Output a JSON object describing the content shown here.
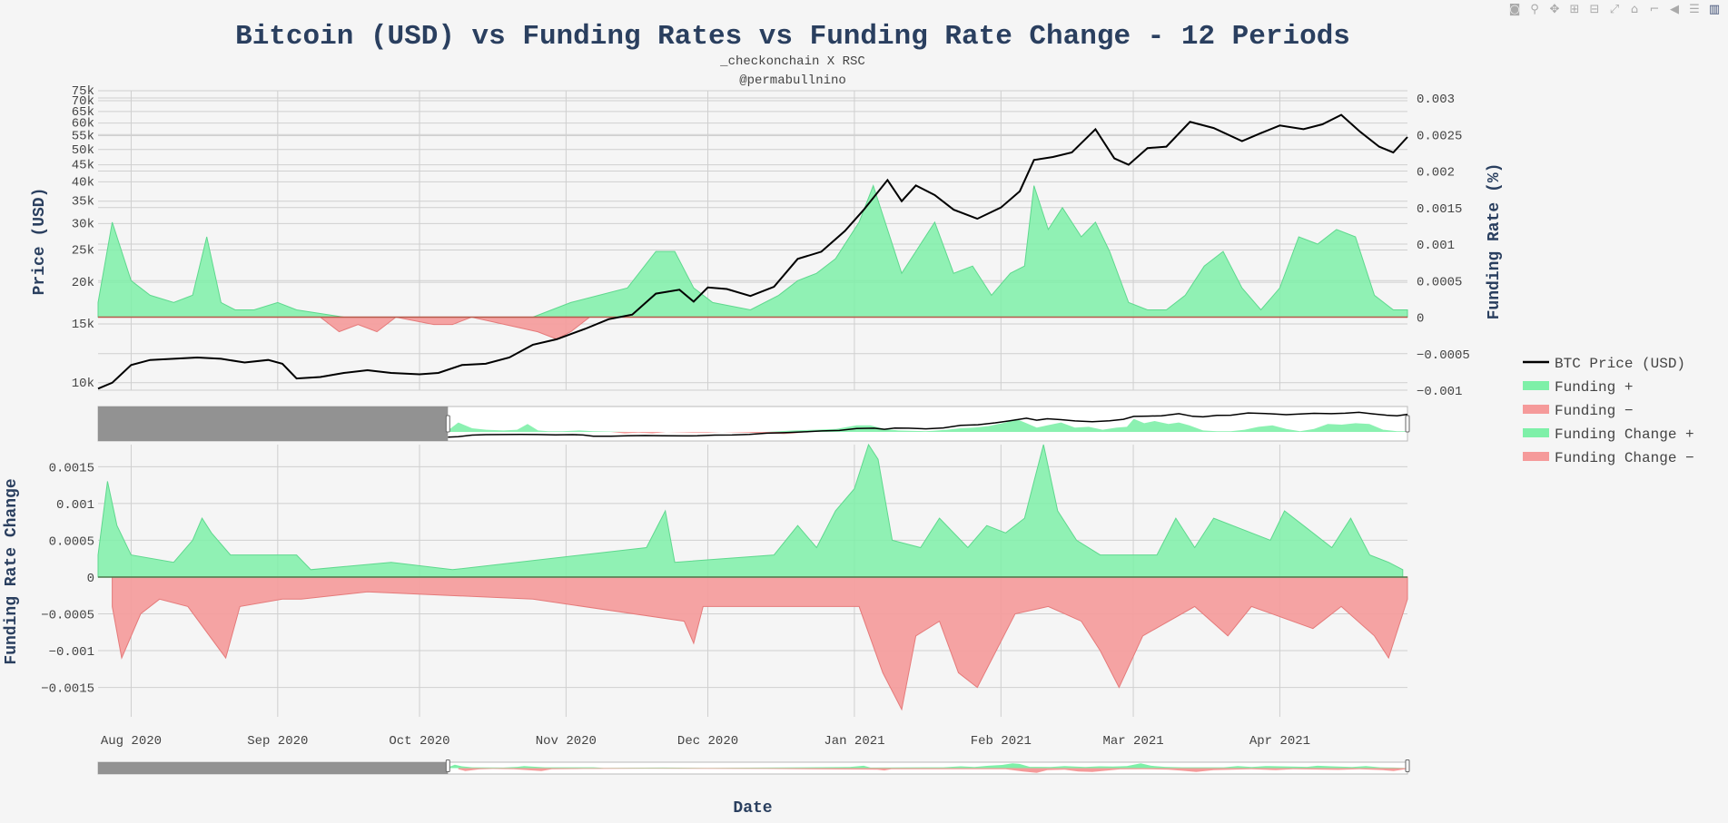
{
  "modebar": [
    {
      "name": "camera-icon",
      "glyph": "◙"
    },
    {
      "name": "zoom-icon",
      "glyph": "⚲"
    },
    {
      "name": "pan-icon",
      "glyph": "✥"
    },
    {
      "name": "zoom-in-icon",
      "glyph": "⊞"
    },
    {
      "name": "zoom-out-icon",
      "glyph": "⊟"
    },
    {
      "name": "autoscale-icon",
      "glyph": "⤢"
    },
    {
      "name": "home-icon",
      "glyph": "⌂"
    },
    {
      "name": "spike-lines-icon",
      "glyph": "⌐"
    },
    {
      "name": "hover-closest-icon",
      "glyph": "◀"
    },
    {
      "name": "hover-compare-icon",
      "glyph": "☰"
    },
    {
      "name": "plotly-logo-icon",
      "glyph": "▥"
    }
  ],
  "chart_data": {
    "type": "line",
    "title": "Bitcoin (USD) vs Funding Rates vs Funding Rate Change - 12 Periods",
    "subtitle_lines": [
      "_checkonchain X RSC",
      "@permabullnino"
    ],
    "xlabel": "Date",
    "x_range": [
      "2020-07-25",
      "2021-04-28"
    ],
    "x_ticks": [
      {
        "date": "2020-08-01",
        "label": "Aug 2020"
      },
      {
        "date": "2020-09-01",
        "label": "Sep 2020"
      },
      {
        "date": "2020-10-01",
        "label": "Oct 2020"
      },
      {
        "date": "2020-11-01",
        "label": "Nov 2020"
      },
      {
        "date": "2020-12-01",
        "label": "Dec 2020"
      },
      {
        "date": "2021-01-01",
        "label": "Jan 2021"
      },
      {
        "date": "2021-02-01",
        "label": "Feb 2021"
      },
      {
        "date": "2021-03-01",
        "label": "Mar 2021"
      },
      {
        "date": "2021-04-01",
        "label": "Apr 2021"
      }
    ],
    "top_panel": {
      "ylabel_left": "Price (USD)",
      "ylabel_right": "Funding Rate (%)",
      "price_scale": "log",
      "price_range": [
        9500,
        75000
      ],
      "price_ticks": [
        {
          "v": 10000,
          "label": "10k"
        },
        {
          "v": 15000,
          "label": "15k"
        },
        {
          "v": 20000,
          "label": "20k"
        },
        {
          "v": 25000,
          "label": "25k"
        },
        {
          "v": 30000,
          "label": "30k"
        },
        {
          "v": 35000,
          "label": "35k"
        },
        {
          "v": 40000,
          "label": "40k"
        },
        {
          "v": 45000,
          "label": "45k"
        },
        {
          "v": 50000,
          "label": "50k"
        },
        {
          "v": 55000,
          "label": "55k"
        },
        {
          "v": 60000,
          "label": "60k"
        },
        {
          "v": 65000,
          "label": "65k"
        },
        {
          "v": 70000,
          "label": "70k"
        },
        {
          "v": 75000,
          "label": "75k"
        }
      ],
      "funding_range": [
        -0.001,
        0.0031
      ],
      "funding_ticks": [
        {
          "v": 0.003,
          "label": "0.003"
        },
        {
          "v": 0.0025,
          "label": "0.0025"
        },
        {
          "v": 0.002,
          "label": "0.002"
        },
        {
          "v": 0.0015,
          "label": "0.0015"
        },
        {
          "v": 0.001,
          "label": "0.001"
        },
        {
          "v": 0.0005,
          "label": "0.0005"
        },
        {
          "v": 0,
          "label": "0"
        },
        {
          "v": -0.0005,
          "label": "−0.0005"
        },
        {
          "v": -0.001,
          "label": "−0.001"
        }
      ],
      "btc_price": {
        "name": "BTC Price (USD)",
        "color": "#000000",
        "x": [
          "2020-07-25",
          "2020-07-28",
          "2020-08-01",
          "2020-08-05",
          "2020-08-10",
          "2020-08-15",
          "2020-08-20",
          "2020-08-25",
          "2020-08-30",
          "2020-09-02",
          "2020-09-05",
          "2020-09-10",
          "2020-09-15",
          "2020-09-20",
          "2020-09-25",
          "2020-10-01",
          "2020-10-05",
          "2020-10-10",
          "2020-10-15",
          "2020-10-20",
          "2020-10-25",
          "2020-10-30",
          "2020-11-05",
          "2020-11-10",
          "2020-11-15",
          "2020-11-20",
          "2020-11-25",
          "2020-11-28",
          "2020-12-01",
          "2020-12-05",
          "2020-12-10",
          "2020-12-15",
          "2020-12-20",
          "2020-12-25",
          "2020-12-30",
          "2021-01-03",
          "2021-01-08",
          "2021-01-11",
          "2021-01-14",
          "2021-01-18",
          "2021-01-22",
          "2021-01-27",
          "2021-02-01",
          "2021-02-05",
          "2021-02-08",
          "2021-02-12",
          "2021-02-16",
          "2021-02-21",
          "2021-02-25",
          "2021-02-28",
          "2021-03-04",
          "2021-03-08",
          "2021-03-13",
          "2021-03-18",
          "2021-03-24",
          "2021-03-28",
          "2021-04-01",
          "2021-04-06",
          "2021-04-10",
          "2021-04-14",
          "2021-04-18",
          "2021-04-22",
          "2021-04-25",
          "2021-04-28"
        ],
        "y": [
          9600,
          10000,
          11300,
          11700,
          11800,
          11900,
          11800,
          11500,
          11700,
          11400,
          10300,
          10400,
          10700,
          10900,
          10700,
          10600,
          10700,
          11300,
          11400,
          11900,
          13000,
          13500,
          14500,
          15500,
          16000,
          18500,
          19000,
          17500,
          19300,
          19100,
          18200,
          19400,
          23500,
          24700,
          28500,
          33000,
          40500,
          35000,
          39000,
          36500,
          33000,
          31000,
          33500,
          37500,
          46500,
          47500,
          49000,
          57500,
          47000,
          45000,
          50500,
          51000,
          60500,
          58000,
          53000,
          56000,
          59000,
          57500,
          59500,
          63500,
          56500,
          51000,
          49000,
          54500
        ]
      },
      "funding_pos": {
        "name": "Funding +",
        "color": "#7ef0a8",
        "x": [
          "2020-07-25",
          "2020-07-28",
          "2020-08-01",
          "2020-08-05",
          "2020-08-10",
          "2020-08-14",
          "2020-08-17",
          "2020-08-20",
          "2020-08-23",
          "2020-08-27",
          "2020-09-01",
          "2020-09-05",
          "2020-09-15",
          "2020-10-15",
          "2020-10-25",
          "2020-11-02",
          "2020-11-08",
          "2020-11-14",
          "2020-11-20",
          "2020-11-24",
          "2020-11-28",
          "2020-12-02",
          "2020-12-10",
          "2020-12-16",
          "2020-12-20",
          "2020-12-24",
          "2020-12-28",
          "2021-01-02",
          "2021-01-05",
          "2021-01-08",
          "2021-01-11",
          "2021-01-14",
          "2021-01-18",
          "2021-01-22",
          "2021-01-26",
          "2021-01-30",
          "2021-02-03",
          "2021-02-06",
          "2021-02-08",
          "2021-02-11",
          "2021-02-14",
          "2021-02-18",
          "2021-02-21",
          "2021-02-24",
          "2021-02-28",
          "2021-03-04",
          "2021-03-08",
          "2021-03-12",
          "2021-03-16",
          "2021-03-20",
          "2021-03-24",
          "2021-03-28",
          "2021-04-01",
          "2021-04-05",
          "2021-04-09",
          "2021-04-13",
          "2021-04-17",
          "2021-04-21",
          "2021-04-25",
          "2021-04-28"
        ],
        "y": [
          0.0002,
          0.0013,
          0.0005,
          0.0003,
          0.0002,
          0.0003,
          0.0011,
          0.0002,
          0.0001,
          0.0001,
          0.0002,
          0.0001,
          0.0,
          0.0,
          0.0,
          0.0002,
          0.0003,
          0.0004,
          0.0009,
          0.0009,
          0.0004,
          0.0002,
          0.0001,
          0.0003,
          0.0005,
          0.0006,
          0.0008,
          0.0013,
          0.0018,
          0.0012,
          0.0006,
          0.0009,
          0.0013,
          0.0006,
          0.0007,
          0.0003,
          0.0006,
          0.0007,
          0.0018,
          0.0012,
          0.0015,
          0.0011,
          0.0013,
          0.0009,
          0.0002,
          0.0001,
          0.0001,
          0.0003,
          0.0007,
          0.0009,
          0.0004,
          0.0001,
          0.0004,
          0.0011,
          0.001,
          0.0012,
          0.0011,
          0.0003,
          0.0001,
          0.0001
        ]
      },
      "funding_neg": {
        "name": "Funding −",
        "color": "#f59a9a",
        "x": [
          "2020-09-10",
          "2020-09-14",
          "2020-09-18",
          "2020-09-22",
          "2020-09-26",
          "2020-10-04",
          "2020-10-08",
          "2020-10-12",
          "2020-10-26",
          "2020-10-30",
          "2020-11-02",
          "2020-11-06"
        ],
        "y": [
          0.0,
          -0.0002,
          -0.0001,
          -0.0002,
          0.0,
          -0.0001,
          -0.0001,
          0.0,
          -0.0002,
          -0.0003,
          -0.0002,
          0.0
        ]
      }
    },
    "bottom_panel": {
      "ylabel": "Funding Rate Change",
      "y_range": [
        -0.0019,
        0.0018
      ],
      "y_ticks": [
        {
          "v": 0.0015,
          "label": "0.0015"
        },
        {
          "v": 0.001,
          "label": "0.001"
        },
        {
          "v": 0.0005,
          "label": "0.0005"
        },
        {
          "v": 0,
          "label": "0"
        },
        {
          "v": -0.0005,
          "label": "−0.0005"
        },
        {
          "v": -0.001,
          "label": "−0.001"
        },
        {
          "v": -0.0015,
          "label": "−0.0015"
        }
      ],
      "change_pos": {
        "name": "Funding Change +",
        "color": "#7ef0a8",
        "x": [
          "2020-07-25",
          "2020-07-27",
          "2020-07-29",
          "2020-08-01",
          "2020-08-10",
          "2020-08-14",
          "2020-08-16",
          "2020-08-18",
          "2020-08-22",
          "2020-09-05",
          "2020-09-08",
          "2020-09-25",
          "2020-10-08",
          "2020-11-18",
          "2020-11-22",
          "2020-11-24",
          "2020-12-15",
          "2020-12-20",
          "2020-12-24",
          "2020-12-28",
          "2021-01-01",
          "2021-01-04",
          "2021-01-06",
          "2021-01-09",
          "2021-01-15",
          "2021-01-19",
          "2021-01-25",
          "2021-01-29",
          "2021-02-02",
          "2021-02-06",
          "2021-02-08",
          "2021-02-10",
          "2021-02-13",
          "2021-02-17",
          "2021-02-22",
          "2021-03-06",
          "2021-03-10",
          "2021-03-14",
          "2021-03-18",
          "2021-03-30",
          "2021-04-02",
          "2021-04-06",
          "2021-04-12",
          "2021-04-16",
          "2021-04-20",
          "2021-04-24",
          "2021-04-27"
        ],
        "y": [
          0.0003,
          0.0013,
          0.0007,
          0.0003,
          0.0002,
          0.0005,
          0.0008,
          0.0006,
          0.0003,
          0.0003,
          0.0001,
          0.0002,
          0.0001,
          0.0004,
          0.0009,
          0.0002,
          0.0003,
          0.0007,
          0.0004,
          0.0009,
          0.0012,
          0.0018,
          0.0016,
          0.0005,
          0.0004,
          0.0008,
          0.0004,
          0.0007,
          0.0006,
          0.0008,
          0.0013,
          0.0018,
          0.0009,
          0.0005,
          0.0003,
          0.0003,
          0.0008,
          0.0004,
          0.0008,
          0.0005,
          0.0009,
          0.0007,
          0.0004,
          0.0008,
          0.0003,
          0.0002,
          0.0001
        ]
      },
      "change_neg": {
        "name": "Funding Change −",
        "color": "#f59a9a",
        "x": [
          "2020-07-28",
          "2020-07-30",
          "2020-08-03",
          "2020-08-07",
          "2020-08-13",
          "2020-08-21",
          "2020-08-24",
          "2020-09-02",
          "2020-09-06",
          "2020-09-20",
          "2020-10-25",
          "2020-11-26",
          "2020-11-28",
          "2020-11-30",
          "2021-01-02",
          "2021-01-07",
          "2021-01-11",
          "2021-01-14",
          "2021-01-19",
          "2021-01-23",
          "2021-01-27",
          "2021-02-04",
          "2021-02-11",
          "2021-02-18",
          "2021-02-22",
          "2021-02-26",
          "2021-03-03",
          "2021-03-14",
          "2021-03-21",
          "2021-03-26",
          "2021-04-08",
          "2021-04-14",
          "2021-04-21",
          "2021-04-24",
          "2021-04-28"
        ],
        "y": [
          -0.0004,
          -0.0011,
          -0.0005,
          -0.0003,
          -0.0004,
          -0.0011,
          -0.0004,
          -0.0003,
          -0.0003,
          -0.0002,
          -0.0003,
          -0.0006,
          -0.0009,
          -0.0004,
          -0.0004,
          -0.0013,
          -0.0018,
          -0.0008,
          -0.0006,
          -0.0013,
          -0.0015,
          -0.0005,
          -0.0004,
          -0.0006,
          -0.001,
          -0.0015,
          -0.0008,
          -0.0004,
          -0.0008,
          -0.0004,
          -0.0007,
          -0.0004,
          -0.0008,
          -0.0011,
          -0.0003
        ]
      }
    },
    "range_slider_window": [
      "2020-04-15",
      "2021-04-28"
    ],
    "legend_placement": "right"
  }
}
